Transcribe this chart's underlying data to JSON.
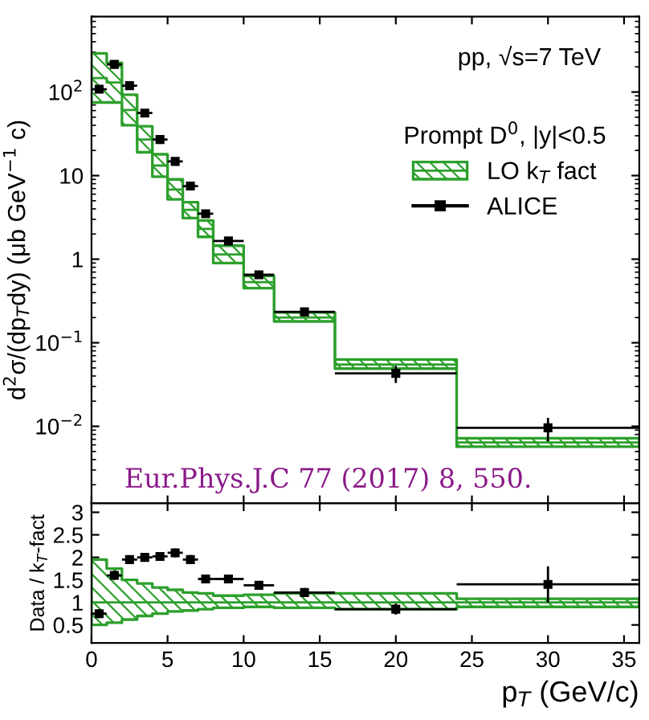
{
  "chart_data": [
    {
      "type": "scatter",
      "ylabel": "d$^{2}$σ/(dp$_{T}$dy) (μb GeV$^{−1}$ c)",
      "legend_title": "Prompt D$^{0}$, |y|<0.5",
      "legend": "top right",
      "log": true,
      "tick_labels": "y",
      "annotations": [
        "pp, √s=7 TeV",
        "Eur.Phys.J.C 77 (2017) 8, 550."
      ],
      "xlim": [
        0,
        36
      ],
      "xticks": [
        0,
        5,
        10,
        15,
        20,
        25,
        30,
        35
      ],
      "ylim": [
        0.0012,
        800
      ],
      "yticks": [
        {
          "value": 0.01,
          "label": "10$^{−2}$"
        },
        {
          "value": 0.1,
          "label": "10$^{−1}$"
        },
        1,
        10,
        {
          "value": 100,
          "label": "10$^{2}$"
        }
      ],
      "series": [
        {
          "name": "LO k$_{T}$ fact",
          "type": "step",
          "color": "#2ca02c",
          "x": [
            0,
            1,
            2,
            3,
            4,
            5,
            6,
            7,
            8,
            10,
            12,
            16,
            24,
            36
          ],
          "values": [
            147,
            130,
            61,
            27,
            13.2,
            6.8,
            3.9,
            2.3,
            1.14,
            0.53,
            0.2,
            0.055,
            0.0064,
            0.0064
          ],
          "lower": [
            75,
            75,
            40,
            19,
            9.7,
            5.2,
            3.1,
            1.85,
            0.9,
            0.45,
            0.18,
            0.049,
            0.0057,
            0.0057
          ],
          "upper": [
            290,
            224,
            93,
            39,
            18,
            9,
            4.8,
            2.9,
            1.45,
            0.63,
            0.23,
            0.063,
            0.0072,
            0.0072
          ]
        },
        {
          "name": "ALICE",
          "color": "#000000",
          "marker": "square",
          "x": [
            0.5,
            1.5,
            2.5,
            3.5,
            4.5,
            5.5,
            6.5,
            7.5,
            9,
            11,
            14,
            20,
            30
          ],
          "values": [
            108,
            214,
            119,
            56,
            27,
            14.8,
            7.5,
            3.5,
            1.65,
            0.65,
            0.234,
            0.043,
            0.0096
          ],
          "xerrors": [
            0.5,
            0.5,
            0.5,
            0.5,
            0.5,
            0.5,
            0.5,
            0.5,
            1,
            1,
            2,
            4,
            6
          ],
          "errors": [
            null,
            null,
            null,
            null,
            null,
            null,
            null,
            null,
            null,
            null,
            null,
            0.01,
            0.003
          ]
        }
      ]
    },
    {
      "type": "scatter",
      "ylabel": "Data / k$_{T}$-fact",
      "xlabel": "p$_{T}$ (GeV/c)",
      "xlim": [
        0,
        36
      ],
      "xticks": [
        0,
        5,
        10,
        15,
        20,
        25,
        30,
        35
      ],
      "ylim": [
        0.1,
        3.2
      ],
      "yticks": [
        0.5,
        1,
        1.5,
        2,
        2.5,
        3
      ],
      "series": [
        {
          "type": "step",
          "color": "#2ca02c",
          "x": [
            0,
            1,
            2,
            3,
            4,
            5,
            6,
            7,
            8,
            10,
            12,
            16,
            24,
            36
          ],
          "values": [
            1,
            1,
            1,
            1,
            1,
            1,
            1,
            1,
            1,
            1,
            1,
            1,
            1,
            1
          ],
          "lower": [
            0.5,
            0.55,
            0.62,
            0.7,
            0.75,
            0.8,
            0.82,
            0.85,
            0.88,
            0.9,
            0.88,
            0.85,
            0.9,
            0.9
          ],
          "upper": [
            1.95,
            1.75,
            1.5,
            1.42,
            1.33,
            1.28,
            1.22,
            1.2,
            1.15,
            1.17,
            1.2,
            1.2,
            1.08,
            1.08
          ]
        },
        {
          "color": "#000000",
          "marker": "square",
          "x": [
            0.5,
            1.5,
            2.5,
            3.5,
            4.5,
            5.5,
            6.5,
            7.5,
            9,
            11,
            14,
            20,
            30
          ],
          "values": [
            0.75,
            1.6,
            1.95,
            2.0,
            2.02,
            2.1,
            1.95,
            1.52,
            1.52,
            1.38,
            1.22,
            0.85,
            1.4
          ],
          "xerrors": [
            0.5,
            0.5,
            0.5,
            0.5,
            0.5,
            0.5,
            0.5,
            0.5,
            1,
            1,
            2,
            4,
            6
          ],
          "errors": [
            0.1,
            0.1,
            0.08,
            0.08,
            0.08,
            0.1,
            0.1,
            0.08,
            0.08,
            0.08,
            0.1,
            0.12,
            0.4
          ]
        }
      ]
    }
  ]
}
